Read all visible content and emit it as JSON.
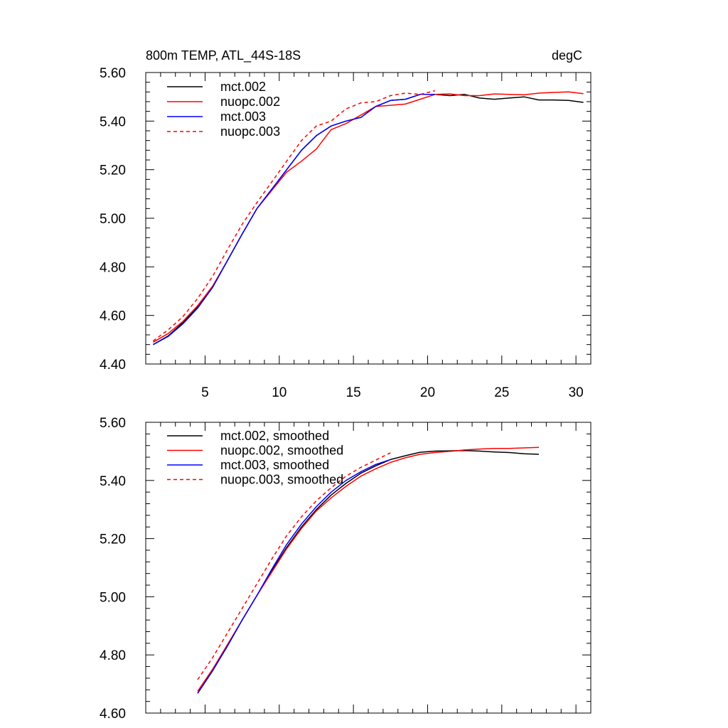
{
  "figure": {
    "title_left": "800m TEMP, ATL_44S-18S",
    "title_right": "degC"
  },
  "chart_data": [
    {
      "type": "line",
      "title": "800m TEMP, ATL_44S-18S",
      "units": "degC",
      "xlim": [
        1,
        31
      ],
      "ylim": [
        4.4,
        5.6
      ],
      "x_ticks": [
        5,
        10,
        15,
        20,
        25,
        30
      ],
      "x_tick_labels": [
        "5",
        "10",
        "15",
        "20",
        "25",
        "30"
      ],
      "y_ticks": [
        4.4,
        4.6,
        4.8,
        5.0,
        5.2,
        5.4,
        5.6
      ],
      "y_tick_labels": [
        "4.40",
        "4.60",
        "4.80",
        "5.00",
        "5.20",
        "5.40",
        "5.60"
      ],
      "legend_position": "top-left",
      "series": [
        {
          "name": "mct.002",
          "color": "#000000",
          "dash": "solid",
          "x": [
            1.5,
            2.5,
            3.5,
            4.5,
            5.5,
            6.5,
            7.5,
            8.5,
            9.5,
            10.5,
            11.5,
            12.5,
            13.5,
            14.5,
            15.5,
            16.5,
            17.5,
            18.5,
            19.5,
            20.5,
            21.5,
            22.5,
            23.5,
            24.5,
            25.5,
            26.5,
            27.5,
            28.5,
            29.5,
            30.5
          ],
          "y": [
            4.48,
            4.515,
            4.57,
            4.635,
            4.715,
            4.825,
            4.935,
            5.04,
            5.12,
            5.2,
            5.28,
            5.34,
            5.38,
            5.4,
            5.415,
            5.46,
            5.485,
            5.49,
            5.51,
            5.51,
            5.505,
            5.51,
            5.495,
            5.49,
            5.495,
            5.5,
            5.487,
            5.487,
            5.485,
            5.477
          ]
        },
        {
          "name": "nuopc.002",
          "color": "#ff0000",
          "dash": "solid",
          "x": [
            1.5,
            2.5,
            3.5,
            4.5,
            5.5,
            6.5,
            7.5,
            8.5,
            9.5,
            10.5,
            11.5,
            12.5,
            13.5,
            14.5,
            15.5,
            16.5,
            17.5,
            18.5,
            19.5,
            20.5,
            21.5,
            22.5,
            23.5,
            24.5,
            25.5,
            26.5,
            27.5,
            28.5,
            29.5,
            30.5
          ],
          "y": [
            4.49,
            4.525,
            4.575,
            4.64,
            4.72,
            4.825,
            4.935,
            5.04,
            5.115,
            5.19,
            5.235,
            5.285,
            5.365,
            5.39,
            5.425,
            5.46,
            5.465,
            5.47,
            5.49,
            5.51,
            5.512,
            5.505,
            5.505,
            5.512,
            5.51,
            5.508,
            5.515,
            5.518,
            5.52,
            5.513
          ]
        },
        {
          "name": "mct.003",
          "color": "#0000ff",
          "dash": "solid",
          "x": [
            1.5,
            2.5,
            3.5,
            4.5,
            5.5,
            6.5,
            7.5,
            8.5,
            9.5,
            10.5,
            11.5,
            12.5,
            13.5,
            14.5,
            15.5,
            16.5,
            17.5,
            18.5,
            19.5,
            20.5
          ],
          "y": [
            4.48,
            4.513,
            4.565,
            4.63,
            4.715,
            4.825,
            4.935,
            5.04,
            5.12,
            5.2,
            5.28,
            5.34,
            5.38,
            5.4,
            5.415,
            5.46,
            5.485,
            5.49,
            5.51,
            5.51
          ]
        },
        {
          "name": "nuopc.003",
          "color": "#ff0000",
          "dash": "dashed",
          "x": [
            1.5,
            2.5,
            3.5,
            4.5,
            5.5,
            6.5,
            7.5,
            8.5,
            9.5,
            10.5,
            11.5,
            12.5,
            13.5,
            14.5,
            15.5,
            16.5,
            17.5,
            18.5,
            19.5,
            20.5
          ],
          "y": [
            4.495,
            4.54,
            4.595,
            4.67,
            4.76,
            4.87,
            4.975,
            5.065,
            5.15,
            5.235,
            5.32,
            5.38,
            5.4,
            5.45,
            5.475,
            5.48,
            5.505,
            5.515,
            5.51,
            5.525
          ]
        }
      ]
    },
    {
      "type": "line",
      "xlim": [
        1,
        31
      ],
      "ylim": [
        4.6,
        5.6
      ],
      "x_ticks": [
        5,
        10,
        15,
        20,
        25,
        30
      ],
      "x_tick_labels": [],
      "y_ticks": [
        4.6,
        4.8,
        5.0,
        5.2,
        5.4,
        5.6
      ],
      "y_tick_labels": [
        "4.60",
        "4.80",
        "5.00",
        "5.20",
        "5.40",
        "5.60"
      ],
      "legend_position": "top-left",
      "series": [
        {
          "name": "mct.002, smoothed",
          "color": "#000000",
          "dash": "solid",
          "x": [
            4.5,
            5.5,
            6.5,
            7.5,
            8.5,
            9.5,
            10.5,
            11.5,
            12.5,
            13.5,
            14.5,
            15.5,
            16.5,
            17.5,
            18.5,
            19.5,
            20.5,
            21.5,
            22.5,
            23.5,
            24.5,
            25.5,
            26.5,
            27.5
          ],
          "y": [
            4.668,
            4.745,
            4.83,
            4.92,
            5.005,
            5.09,
            5.17,
            5.24,
            5.3,
            5.35,
            5.39,
            5.425,
            5.45,
            5.472,
            5.485,
            5.497,
            5.501,
            5.502,
            5.503,
            5.501,
            5.498,
            5.496,
            5.492,
            5.49
          ]
        },
        {
          "name": "nuopc.002, smoothed",
          "color": "#ff0000",
          "dash": "solid",
          "x": [
            4.5,
            5.5,
            6.5,
            7.5,
            8.5,
            9.5,
            10.5,
            11.5,
            12.5,
            13.5,
            14.5,
            15.5,
            16.5,
            17.5,
            18.5,
            19.5,
            20.5,
            21.5,
            22.5,
            23.5,
            24.5,
            25.5,
            26.5,
            27.5
          ],
          "y": [
            4.675,
            4.75,
            4.835,
            4.92,
            5.005,
            5.085,
            5.165,
            5.235,
            5.295,
            5.34,
            5.38,
            5.415,
            5.44,
            5.462,
            5.478,
            5.49,
            5.496,
            5.5,
            5.505,
            5.508,
            5.51,
            5.51,
            5.512,
            5.514
          ]
        },
        {
          "name": "mct.003, smoothed",
          "color": "#0000ff",
          "dash": "solid",
          "x": [
            4.5,
            5.5,
            6.5,
            7.5,
            8.5,
            9.5,
            10.5,
            11.5,
            12.5,
            13.5,
            14.5,
            15.5,
            16.5,
            17.5
          ],
          "y": [
            4.668,
            4.745,
            4.83,
            4.92,
            5.005,
            5.095,
            5.18,
            5.25,
            5.31,
            5.36,
            5.4,
            5.43,
            5.455,
            5.472
          ]
        },
        {
          "name": "nuopc.003, smoothed",
          "color": "#ff0000",
          "dash": "dashed",
          "x": [
            4.5,
            5.5,
            6.5,
            7.5,
            8.5,
            9.5,
            10.5,
            11.5,
            12.5,
            13.5,
            14.5,
            15.5,
            16.5,
            17.5
          ],
          "y": [
            4.715,
            4.79,
            4.875,
            4.96,
            5.045,
            5.13,
            5.21,
            5.275,
            5.33,
            5.375,
            5.415,
            5.445,
            5.47,
            5.495
          ]
        }
      ]
    }
  ]
}
